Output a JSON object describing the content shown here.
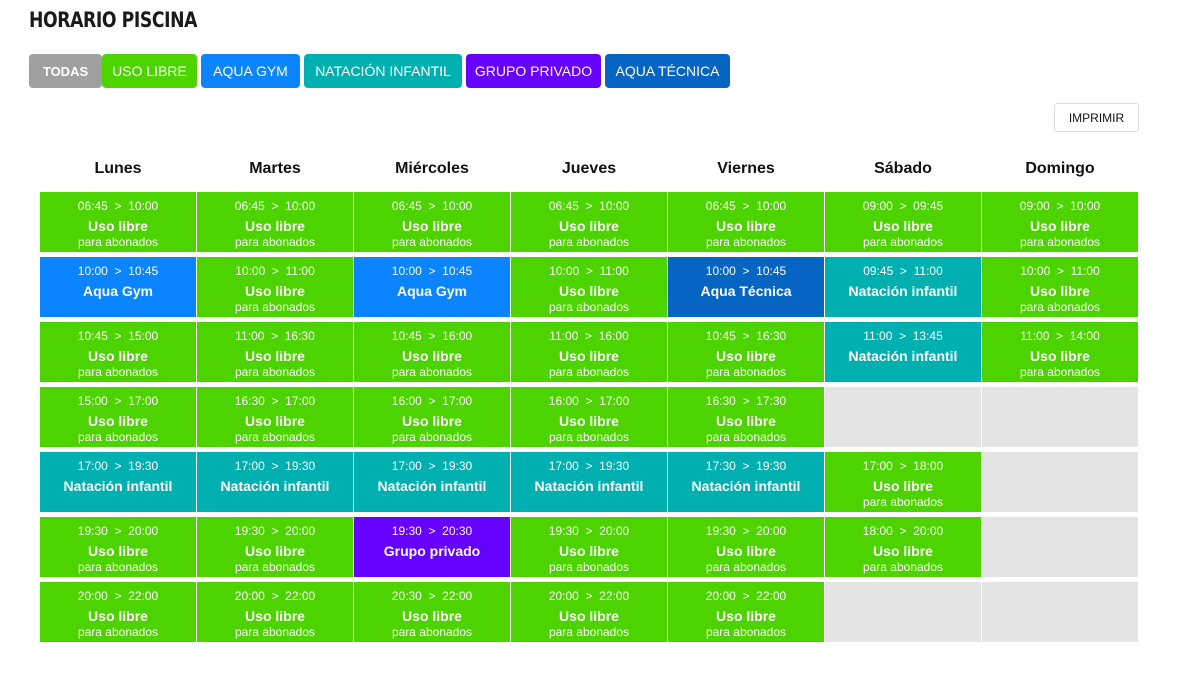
{
  "page_title": "HORARIO PISCINA",
  "print_label": "IMPRIMIR",
  "colors": {
    "uso_libre": "#4cd300",
    "aqua_gym": "#0a84ff",
    "natacion_infantil": "#00b0b0",
    "grupo_privado": "#6600ff",
    "aqua_tecnica": "#0665c2",
    "todas": "#a0a0a0",
    "empty": "#e4e4e4"
  },
  "filters": [
    {
      "label": "TODAS",
      "type": "todas"
    },
    {
      "label": "USO LIBRE",
      "type": "uso_libre"
    },
    {
      "label": "AQUA GYM",
      "type": "aqua_gym"
    },
    {
      "label": "NATACIÓN INFANTIL",
      "type": "natacion_infantil"
    },
    {
      "label": "GRUPO PRIVADO",
      "type": "grupo_privado"
    },
    {
      "label": "AQUA TÉCNICA",
      "type": "aqua_tecnica"
    }
  ],
  "days": [
    {
      "name": "Lunes",
      "slots": [
        {
          "time": "06:45  >  10:00",
          "activity": "Uso libre",
          "sub": "para abonados",
          "type": "uso_libre"
        },
        {
          "time": "10:00  >  10:45",
          "activity": "Aqua Gym",
          "sub": "",
          "type": "aqua_gym"
        },
        {
          "time": "10:45  >  15:00",
          "activity": "Uso libre",
          "sub": "para abonados",
          "type": "uso_libre"
        },
        {
          "time": "15:00  >  17:00",
          "activity": "Uso libre",
          "sub": "para abonados",
          "type": "uso_libre"
        },
        {
          "time": "17:00  >  19:30",
          "activity": "Natación infantil",
          "sub": "",
          "type": "natacion_infantil"
        },
        {
          "time": "19:30  >  20:00",
          "activity": "Uso libre",
          "sub": "para abonados",
          "type": "uso_libre"
        },
        {
          "time": "20:00  >  22:00",
          "activity": "Uso libre",
          "sub": "para abonados",
          "type": "uso_libre"
        }
      ]
    },
    {
      "name": "Martes",
      "slots": [
        {
          "time": "06:45  >  10:00",
          "activity": "Uso libre",
          "sub": "para abonados",
          "type": "uso_libre"
        },
        {
          "time": "10:00  >  11:00",
          "activity": "Uso libre",
          "sub": "para abonados",
          "type": "uso_libre"
        },
        {
          "time": "11:00  >  16:30",
          "activity": "Uso libre",
          "sub": "para abonados",
          "type": "uso_libre"
        },
        {
          "time": "16:30  >  17:00",
          "activity": "Uso libre",
          "sub": "para abonados",
          "type": "uso_libre"
        },
        {
          "time": "17:00  >  19:30",
          "activity": "Natación infantil",
          "sub": "",
          "type": "natacion_infantil"
        },
        {
          "time": "19:30  >  20:00",
          "activity": "Uso libre",
          "sub": "para abonados",
          "type": "uso_libre"
        },
        {
          "time": "20:00  >  22:00",
          "activity": "Uso libre",
          "sub": "para abonados",
          "type": "uso_libre"
        }
      ]
    },
    {
      "name": "Miércoles",
      "slots": [
        {
          "time": "06:45  >  10:00",
          "activity": "Uso libre",
          "sub": "para abonados",
          "type": "uso_libre"
        },
        {
          "time": "10:00  >  10:45",
          "activity": "Aqua Gym",
          "sub": "",
          "type": "aqua_gym"
        },
        {
          "time": "10:45  >  16:00",
          "activity": "Uso libre",
          "sub": "para abonados",
          "type": "uso_libre"
        },
        {
          "time": "16:00  >  17:00",
          "activity": "Uso libre",
          "sub": "para abonados",
          "type": "uso_libre"
        },
        {
          "time": "17:00  >  19:30",
          "activity": "Natación infantil",
          "sub": "",
          "type": "natacion_infantil"
        },
        {
          "time": "19:30  >  20:30",
          "activity": "Grupo privado",
          "sub": "",
          "type": "grupo_privado"
        },
        {
          "time": "20:30  >  22:00",
          "activity": "Uso libre",
          "sub": "para abonados",
          "type": "uso_libre"
        }
      ]
    },
    {
      "name": "Jueves",
      "slots": [
        {
          "time": "06:45  >  10:00",
          "activity": "Uso libre",
          "sub": "para abonados",
          "type": "uso_libre"
        },
        {
          "time": "10:00  >  11:00",
          "activity": "Uso libre",
          "sub": "para abonados",
          "type": "uso_libre"
        },
        {
          "time": "11:00  >  16:00",
          "activity": "Uso libre",
          "sub": "para abonados",
          "type": "uso_libre"
        },
        {
          "time": "16:00  >  17:00",
          "activity": "Uso libre",
          "sub": "para abonados",
          "type": "uso_libre"
        },
        {
          "time": "17:00  >  19:30",
          "activity": "Natación infantil",
          "sub": "",
          "type": "natacion_infantil"
        },
        {
          "time": "19:30  >  20:00",
          "activity": "Uso libre",
          "sub": "para abonados",
          "type": "uso_libre"
        },
        {
          "time": "20:00  >  22:00",
          "activity": "Uso libre",
          "sub": "para abonados",
          "type": "uso_libre"
        }
      ]
    },
    {
      "name": "Viernes",
      "slots": [
        {
          "time": "06:45  >  10:00",
          "activity": "Uso libre",
          "sub": "para abonados",
          "type": "uso_libre"
        },
        {
          "time": "10:00  >  10:45",
          "activity": "Aqua Técnica",
          "sub": "",
          "type": "aqua_tecnica"
        },
        {
          "time": "10:45  >  16:30",
          "activity": "Uso libre",
          "sub": "para abonados",
          "type": "uso_libre"
        },
        {
          "time": "16:30  >  17:30",
          "activity": "Uso libre",
          "sub": "para abonados",
          "type": "uso_libre"
        },
        {
          "time": "17:30  >  19:30",
          "activity": "Natación infantil",
          "sub": "",
          "type": "natacion_infantil"
        },
        {
          "time": "19:30  >  20:00",
          "activity": "Uso libre",
          "sub": "para abonados",
          "type": "uso_libre"
        },
        {
          "time": "20:00  >  22:00",
          "activity": "Uso libre",
          "sub": "para abonados",
          "type": "uso_libre"
        }
      ]
    },
    {
      "name": "Sábado",
      "slots": [
        {
          "time": "09:00  >  09:45",
          "activity": "Uso libre",
          "sub": "para abonados",
          "type": "uso_libre"
        },
        {
          "time": "09:45  >  11:00",
          "activity": "Natación infantil",
          "sub": "",
          "type": "natacion_infantil"
        },
        {
          "time": "11:00  >  13:45",
          "activity": "Natación infantil",
          "sub": "",
          "type": "natacion_infantil"
        },
        null,
        {
          "time": "17:00  >  18:00",
          "activity": "Uso libre",
          "sub": "para abonados",
          "type": "uso_libre"
        },
        {
          "time": "18:00  >  20:00",
          "activity": "Uso libre",
          "sub": "para abonados",
          "type": "uso_libre"
        },
        null
      ]
    },
    {
      "name": "Domingo",
      "slots": [
        {
          "time": "09:00  >  10:00",
          "activity": "Uso libre",
          "sub": "para abonados",
          "type": "uso_libre"
        },
        {
          "time": "10:00  >  11:00",
          "activity": "Uso libre",
          "sub": "para abonados",
          "type": "uso_libre"
        },
        {
          "time": "11:00  >  14:00",
          "activity": "Uso libre",
          "sub": "para abonados",
          "type": "uso_libre"
        },
        null,
        null,
        null,
        null
      ]
    }
  ]
}
